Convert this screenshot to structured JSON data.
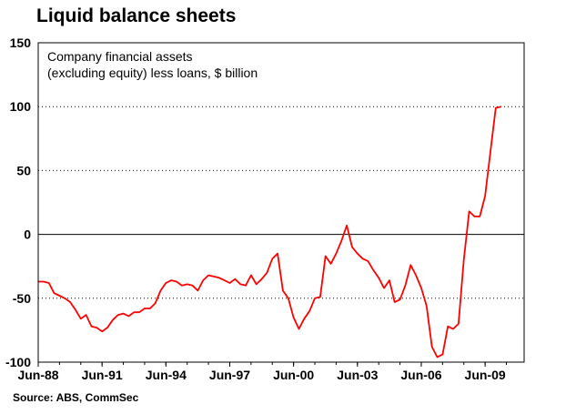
{
  "chart_data": {
    "type": "line",
    "title": "Liquid balance sheets",
    "annotation_lines": [
      "Company financial assets",
      "(excluding equity) less loans, $ billion"
    ],
    "source": "Source: ABS, CommSec",
    "ylim": [
      -100,
      150
    ],
    "y_ticks": [
      150,
      100,
      50,
      0,
      -50,
      -100
    ],
    "x_tick_labels": [
      "Jun-88",
      "Jun-91",
      "Jun-94",
      "Jun-97",
      "Jun-00",
      "Jun-03",
      "Jun-06",
      "Jun-09"
    ],
    "grid": "horizontal dashed",
    "series": [
      {
        "color": "#ff0000",
        "points": [
          [
            "1988-06",
            -37
          ],
          [
            "1988-09",
            -37
          ],
          [
            "1988-12",
            -38
          ],
          [
            "1989-03",
            -46
          ],
          [
            "1989-06",
            -48
          ],
          [
            "1989-09",
            -50
          ],
          [
            "1989-12",
            -53
          ],
          [
            "1990-03",
            -59
          ],
          [
            "1990-06",
            -66
          ],
          [
            "1990-09",
            -63
          ],
          [
            "1990-12",
            -72
          ],
          [
            "1991-03",
            -73
          ],
          [
            "1991-06",
            -76
          ],
          [
            "1991-09",
            -73
          ],
          [
            "1991-12",
            -67
          ],
          [
            "1992-03",
            -63
          ],
          [
            "1992-06",
            -62
          ],
          [
            "1992-09",
            -64
          ],
          [
            "1992-12",
            -61
          ],
          [
            "1993-03",
            -61
          ],
          [
            "1993-06",
            -58
          ],
          [
            "1993-09",
            -58
          ],
          [
            "1993-12",
            -54
          ],
          [
            "1994-03",
            -44
          ],
          [
            "1994-06",
            -38
          ],
          [
            "1994-09",
            -36
          ],
          [
            "1994-12",
            -37
          ],
          [
            "1995-03",
            -40
          ],
          [
            "1995-06",
            -39
          ],
          [
            "1995-09",
            -40
          ],
          [
            "1995-12",
            -44
          ],
          [
            "1996-03",
            -36
          ],
          [
            "1996-06",
            -32
          ],
          [
            "1996-09",
            -33
          ],
          [
            "1996-12",
            -34
          ],
          [
            "1997-03",
            -36
          ],
          [
            "1997-06",
            -38
          ],
          [
            "1997-09",
            -35
          ],
          [
            "1997-12",
            -39
          ],
          [
            "1998-03",
            -40
          ],
          [
            "1998-06",
            -32
          ],
          [
            "1998-09",
            -39
          ],
          [
            "1998-12",
            -35
          ],
          [
            "1999-03",
            -30
          ],
          [
            "1999-06",
            -19
          ],
          [
            "1999-09",
            -15
          ],
          [
            "1999-12",
            -44
          ],
          [
            "2000-03",
            -50
          ],
          [
            "2000-06",
            -65
          ],
          [
            "2000-09",
            -74
          ],
          [
            "2000-12",
            -66
          ],
          [
            "2001-03",
            -60
          ],
          [
            "2001-06",
            -50
          ],
          [
            "2001-09",
            -49
          ],
          [
            "2001-12",
            -17
          ],
          [
            "2002-03",
            -23
          ],
          [
            "2002-06",
            -15
          ],
          [
            "2002-09",
            -5
          ],
          [
            "2002-12",
            7
          ],
          [
            "2003-03",
            -10
          ],
          [
            "2003-06",
            -15
          ],
          [
            "2003-09",
            -19
          ],
          [
            "2003-12",
            -21
          ],
          [
            "2004-03",
            -28
          ],
          [
            "2004-06",
            -34
          ],
          [
            "2004-09",
            -42
          ],
          [
            "2004-12",
            -36
          ],
          [
            "2005-03",
            -53
          ],
          [
            "2005-06",
            -51
          ],
          [
            "2005-09",
            -40
          ],
          [
            "2005-12",
            -24
          ],
          [
            "2006-03",
            -32
          ],
          [
            "2006-06",
            -42
          ],
          [
            "2006-09",
            -56
          ],
          [
            "2006-12",
            -88
          ],
          [
            "2007-03",
            -96
          ],
          [
            "2007-06",
            -94
          ],
          [
            "2007-09",
            -72
          ],
          [
            "2007-12",
            -74
          ],
          [
            "2008-03",
            -70
          ],
          [
            "2008-06",
            -20
          ],
          [
            "2008-09",
            18
          ],
          [
            "2008-12",
            14
          ],
          [
            "2009-03",
            14
          ],
          [
            "2009-06",
            30
          ],
          [
            "2009-09",
            65
          ],
          [
            "2009-12",
            99
          ],
          [
            "2010-03",
            100
          ]
        ]
      }
    ]
  }
}
